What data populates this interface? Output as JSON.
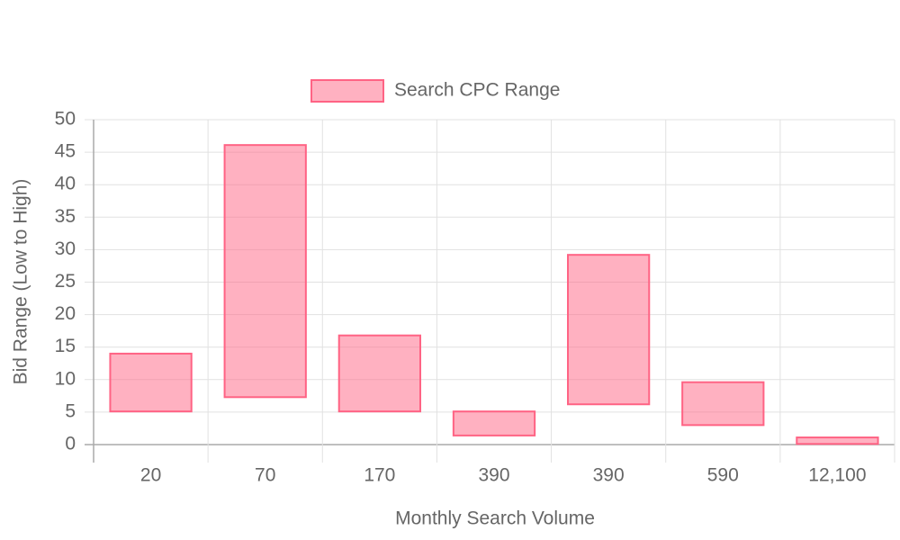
{
  "chart_data": {
    "type": "floating-bar",
    "x_label": "Monthly Search Volume",
    "y_label": "Bid Range (Low to High)",
    "categories": [
      "20",
      "70",
      "170",
      "390",
      "390",
      "590",
      "12,100"
    ],
    "series": [
      {
        "name": "Search CPC Range",
        "color": "#ff6384",
        "values": [
          [
            5.1,
            14.0
          ],
          [
            7.3,
            46.1
          ],
          [
            5.1,
            16.8
          ],
          [
            1.4,
            5.1
          ],
          [
            6.2,
            29.2
          ],
          [
            3.0,
            9.6
          ],
          [
            0.1,
            1.1
          ]
        ]
      }
    ],
    "ylim": [
      0,
      50
    ],
    "yticks": [
      0,
      5,
      10,
      15,
      20,
      25,
      30,
      35,
      40,
      45,
      50
    ],
    "grid": true,
    "legend": "top"
  }
}
